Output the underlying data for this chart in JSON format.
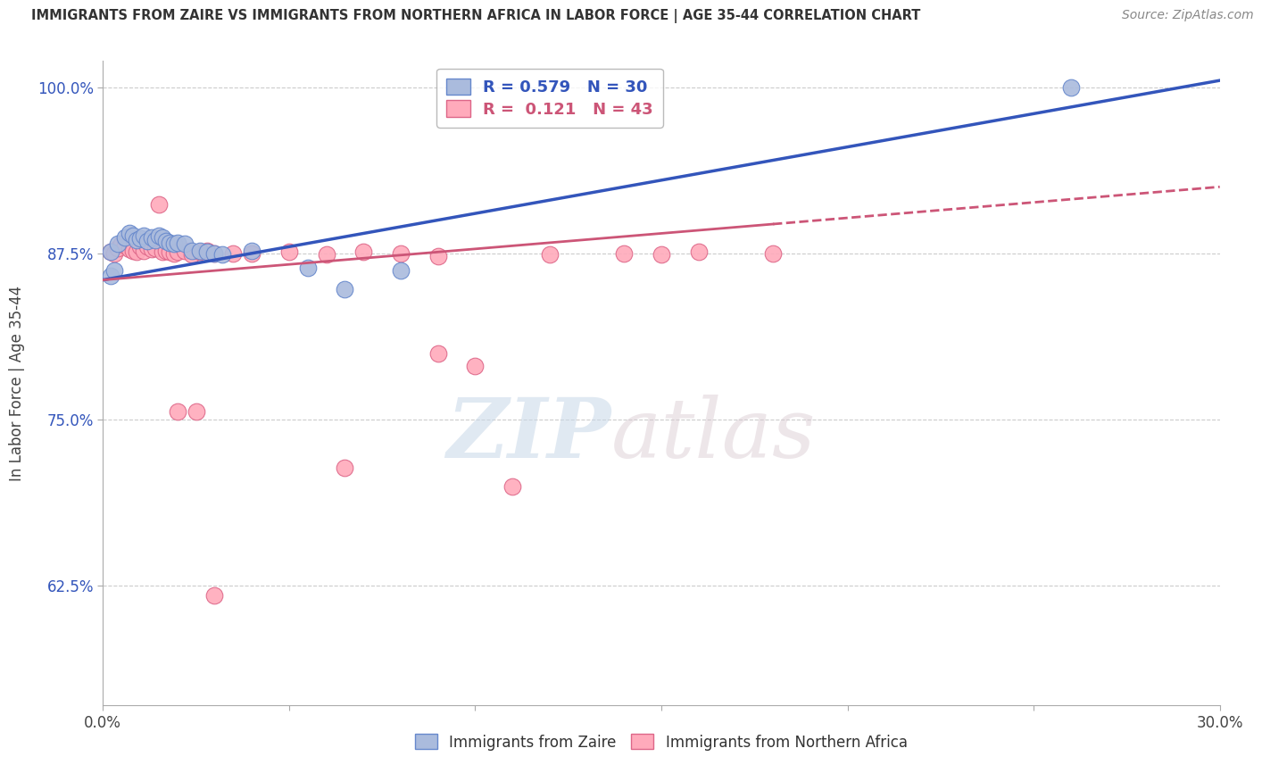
{
  "title": "IMMIGRANTS FROM ZAIRE VS IMMIGRANTS FROM NORTHERN AFRICA IN LABOR FORCE | AGE 35-44 CORRELATION CHART",
  "source": "Source: ZipAtlas.com",
  "ylabel": "In Labor Force | Age 35-44",
  "xlim": [
    0.0,
    0.3
  ],
  "ylim": [
    0.535,
    1.02
  ],
  "xticks": [
    0.0,
    0.05,
    0.1,
    0.15,
    0.2,
    0.25,
    0.3
  ],
  "xticklabels": [
    "0.0%",
    "",
    "",
    "",
    "",
    "",
    "30.0%"
  ],
  "yticks": [
    0.625,
    0.75,
    0.875,
    1.0
  ],
  "yticklabels": [
    "62.5%",
    "75.0%",
    "87.5%",
    "100.0%"
  ],
  "blue_R": 0.579,
  "blue_N": 30,
  "pink_R": 0.121,
  "pink_N": 43,
  "blue_color": "#AABBDD",
  "pink_color": "#FFAABB",
  "blue_edge_color": "#6688CC",
  "pink_edge_color": "#DD6688",
  "blue_line_color": "#3355BB",
  "pink_line_color": "#CC5577",
  "legend_label_blue": "Immigrants from Zaire",
  "legend_label_pink": "Immigrants from Northern Africa",
  "watermark_zip": "ZIP",
  "watermark_atlas": "atlas",
  "blue_scatter_x": [
    0.002,
    0.004,
    0.006,
    0.007,
    0.008,
    0.009,
    0.01,
    0.011,
    0.012,
    0.013,
    0.014,
    0.015,
    0.016,
    0.017,
    0.018,
    0.019,
    0.02,
    0.022,
    0.024,
    0.026,
    0.028,
    0.03,
    0.032,
    0.04,
    0.055,
    0.065,
    0.08,
    0.002,
    0.003,
    0.26
  ],
  "blue_scatter_y": [
    0.876,
    0.882,
    0.887,
    0.89,
    0.888,
    0.885,
    0.886,
    0.888,
    0.884,
    0.887,
    0.885,
    0.888,
    0.887,
    0.884,
    0.883,
    0.882,
    0.883,
    0.882,
    0.877,
    0.877,
    0.876,
    0.875,
    0.874,
    0.877,
    0.864,
    0.848,
    0.862,
    0.858,
    0.862,
    1.0
  ],
  "pink_scatter_x": [
    0.002,
    0.003,
    0.004,
    0.005,
    0.006,
    0.007,
    0.008,
    0.009,
    0.01,
    0.011,
    0.012,
    0.013,
    0.014,
    0.015,
    0.016,
    0.017,
    0.018,
    0.019,
    0.02,
    0.022,
    0.024,
    0.026,
    0.028,
    0.03,
    0.035,
    0.04,
    0.05,
    0.06,
    0.07,
    0.08,
    0.09,
    0.12,
    0.14,
    0.15,
    0.16,
    0.18,
    0.09,
    0.1,
    0.02,
    0.025,
    0.065,
    0.11,
    0.03
  ],
  "pink_scatter_y": [
    0.876,
    0.875,
    0.879,
    0.882,
    0.881,
    0.878,
    0.877,
    0.876,
    0.88,
    0.877,
    0.88,
    0.878,
    0.879,
    0.912,
    0.876,
    0.877,
    0.876,
    0.875,
    0.876,
    0.877,
    0.874,
    0.876,
    0.877,
    0.875,
    0.875,
    0.875,
    0.876,
    0.874,
    0.876,
    0.875,
    0.873,
    0.874,
    0.875,
    0.874,
    0.876,
    0.875,
    0.8,
    0.79,
    0.756,
    0.756,
    0.714,
    0.7,
    0.618
  ]
}
